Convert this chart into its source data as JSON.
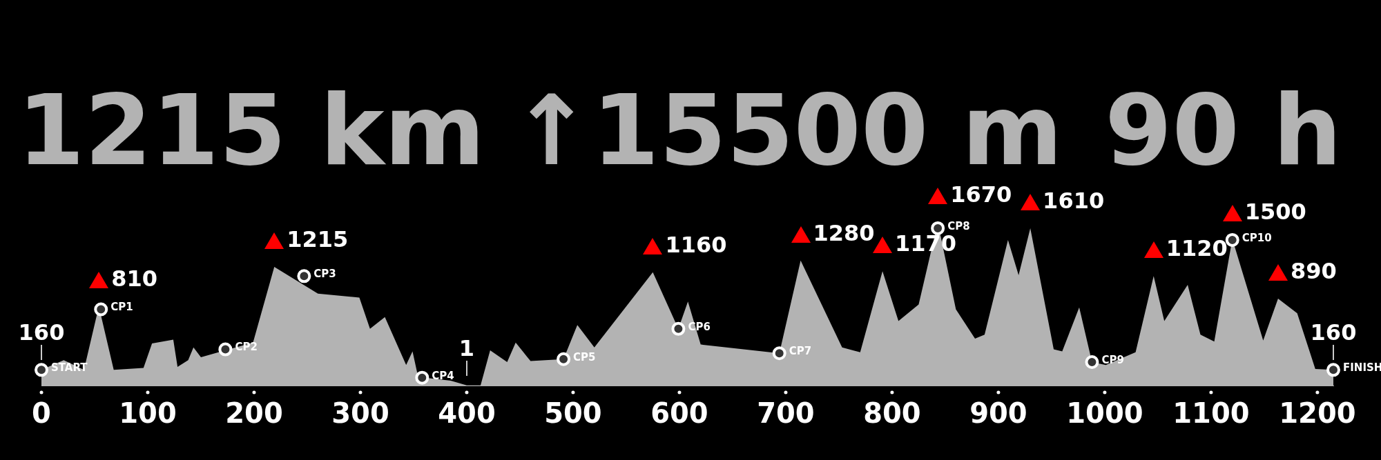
{
  "chart_data": {
    "type": "area",
    "annotations": [
      "1215 km",
      "↑15500 m",
      "90 h"
    ],
    "xlim": [
      0,
      1215
    ],
    "xticks": [
      0,
      100,
      200,
      300,
      400,
      500,
      600,
      700,
      800,
      900,
      1000,
      1100,
      1200
    ],
    "tick_labels": "x",
    "grid": false,
    "series": [
      {
        "color": "#b3b3b3",
        "x": [
          0,
          21,
          40,
          54,
          68,
          96,
          104,
          124,
          128,
          138,
          143,
          150,
          199,
          219,
          260,
          299,
          309,
          323,
          343,
          349,
          354,
          361,
          385,
          400,
          413,
          422,
          438,
          446,
          460,
          491,
          504,
          520,
          575,
          599,
          608,
          620,
          694,
          714,
          753,
          770,
          791,
          806,
          825,
          843,
          860,
          878,
          887,
          909,
          919,
          930,
          952,
          960,
          976,
          988,
          1001,
          1029,
          1046,
          1056,
          1078,
          1090,
          1103,
          1120,
          1149,
          1163,
          1181,
          1198,
          1215
        ],
        "values": [
          160,
          260,
          160,
          810,
          160,
          180,
          430,
          470,
          190,
          260,
          390,
          290,
          440,
          1215,
          940,
          900,
          580,
          700,
          210,
          350,
          100,
          80,
          50,
          1,
          1,
          360,
          240,
          440,
          250,
          270,
          620,
          390,
          1160,
          580,
          860,
          420,
          330,
          1280,
          390,
          340,
          1170,
          660,
          830,
          1670,
          780,
          480,
          520,
          1490,
          1130,
          1610,
          370,
          350,
          800,
          240,
          210,
          340,
          1120,
          660,
          1030,
          520,
          450,
          1500,
          460,
          890,
          740,
          170,
          160
        ],
        "value_labels": [
          "160",
          null,
          null,
          "810",
          null,
          null,
          null,
          null,
          null,
          null,
          null,
          null,
          null,
          "1215",
          null,
          null,
          null,
          null,
          null,
          null,
          null,
          null,
          null,
          "1",
          null,
          null,
          null,
          null,
          null,
          null,
          null,
          null,
          "1160",
          null,
          null,
          null,
          null,
          "1280",
          null,
          null,
          "1170",
          null,
          null,
          "1670",
          null,
          null,
          null,
          null,
          null,
          "1610",
          null,
          null,
          null,
          null,
          null,
          null,
          "1120",
          null,
          null,
          null,
          null,
          "1500",
          null,
          "890",
          null,
          null,
          "160"
        ]
      },
      {
        "type": "scatter",
        "color": "#ffffff",
        "marker": "circle",
        "x": [
          0,
          56,
          173,
          247,
          358,
          491,
          599,
          694,
          843,
          988,
          1120,
          1215
        ],
        "values": [
          160,
          780,
          370,
          1120,
          80,
          270,
          580,
          330,
          1610,
          240,
          1490,
          160
        ],
        "value_labels": [
          "START",
          "CP1",
          "CP2",
          "CP3",
          "CP4",
          "CP5",
          "CP6",
          "CP7",
          "CP8",
          "CP9",
          "CP10",
          "FINISH"
        ]
      }
    ]
  }
}
